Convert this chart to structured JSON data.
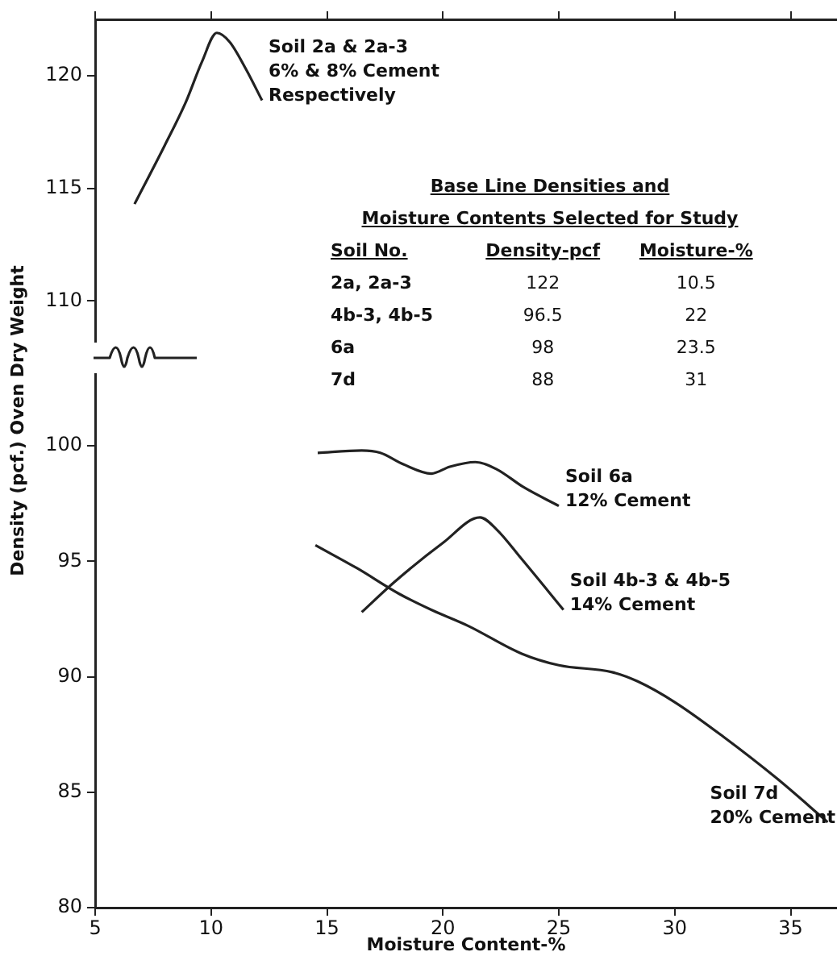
{
  "chart_data": [
    {
      "type": "line",
      "xlim": [
        5,
        37
      ],
      "xticks": [
        5,
        10,
        15,
        20,
        25,
        30,
        35
      ],
      "ylim": [
        108.2,
        122.5
      ],
      "yticks": [
        110,
        115,
        120
      ],
      "tick_labels": "y",
      "marker": "none",
      "line_style": "solid",
      "legend": false,
      "grid": false,
      "series": [
        {
          "color": "#222222",
          "x": [
            6.7,
            8,
            8.9,
            9.6,
            10.25,
            10.8,
            11.5,
            12.2
          ],
          "values": [
            114.3,
            116.9,
            118.8,
            120.6,
            121.9,
            121.5,
            120.3,
            118.9
          ]
        }
      ],
      "annotations": [
        "Soil 2a & 2a-3\n6% & 8% Cement\nRespectively"
      ]
    },
    {
      "type": "line",
      "xlim": [
        5,
        37
      ],
      "xticks": [
        5,
        10,
        15,
        20,
        25,
        30,
        35
      ],
      "ylim": [
        80,
        103.1
      ],
      "yticks": [
        80,
        85,
        90,
        95,
        100
      ],
      "xlabel": "Moisture Content-%",
      "ylabel": "Density (pcf.) Oven Dry Weight",
      "marker": "none",
      "line_style": "solid",
      "legend": false,
      "grid": false,
      "series": [
        {
          "color": "#222222",
          "x": [
            14.6,
            16.5,
            17.3,
            18.3,
            19.5,
            20.3,
            21.4,
            22.3,
            23.5,
            25
          ],
          "values": [
            99.7,
            99.8,
            99.7,
            99.2,
            98.8,
            99.1,
            99.3,
            99,
            98.2,
            97.4
          ]
        },
        {
          "color": "#222222",
          "x": [
            16.5,
            17.9,
            20,
            21.6,
            22.3,
            23.4,
            25.2
          ],
          "values": [
            92.8,
            94.1,
            95.8,
            96.9,
            96.4,
            95.1,
            92.9
          ]
        },
        {
          "color": "#222222",
          "x": [
            14.5,
            16.3,
            18.1,
            19.5,
            21.1,
            23.4,
            25,
            27.3,
            28.4,
            30,
            32.1,
            34.4,
            36.6
          ],
          "values": [
            95.7,
            94.7,
            93.6,
            92.9,
            92.2,
            91,
            90.5,
            90.2,
            89.8,
            88.9,
            87.4,
            85.6,
            83.7
          ]
        }
      ],
      "annotations": [
        "Soil 6a\n12% Cement",
        "Soil 4b-3 & 4b-5\n14% Cement",
        "Soil 7d\n20% Cement"
      ]
    },
    {
      "type": "other",
      "title": "Base Line Densities and\nMoisture Contents Selected for Study",
      "xlabel": "Soil No.",
      "categories": [
        "2a, 2a-3",
        "4b-3, 4b-5",
        "6a",
        "7d"
      ],
      "data_labels": true,
      "series": [
        {
          "name": "Density-pcf",
          "values": [
            122,
            96.5,
            98,
            88
          ]
        },
        {
          "name": "Moisture-%",
          "values": [
            10.5,
            22,
            23.5,
            31
          ]
        }
      ]
    }
  ]
}
